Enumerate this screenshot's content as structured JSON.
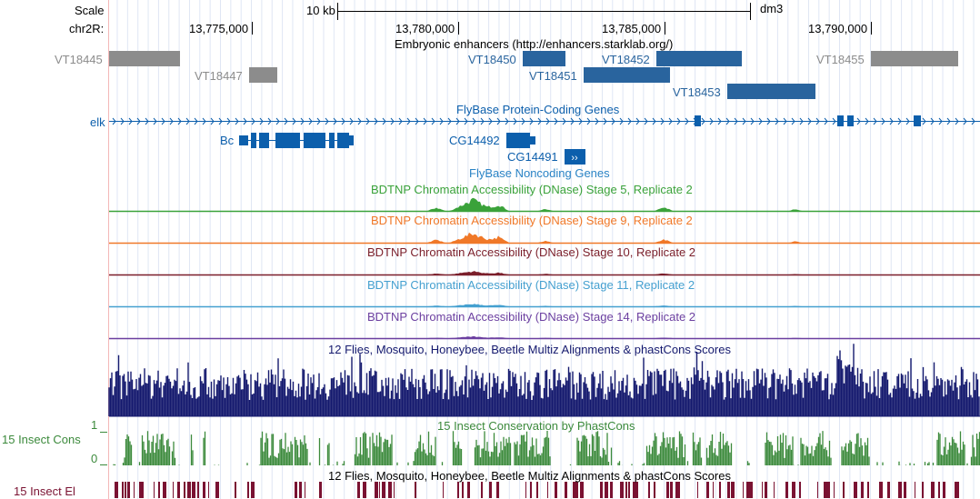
{
  "ruler": {
    "scale_label": "Scale",
    "chrom_label": "chr2R:",
    "scale_bar_label": "10 kb",
    "assembly": "dm3",
    "positions": [
      "13,775,000",
      "13,780,000",
      "13,785,000",
      "13,790,000"
    ]
  },
  "tracks": {
    "enhancers": {
      "title": "Embryonic enhancers (http://enhancers.starklab.org/)",
      "items": [
        {
          "name": "VT18445",
          "color": "#8c8c8c"
        },
        {
          "name": "VT18447",
          "color": "#8c8c8c"
        },
        {
          "name": "VT18450",
          "color": "#29649e"
        },
        {
          "name": "VT18452",
          "color": "#29649e"
        },
        {
          "name": "VT18451",
          "color": "#29649e"
        },
        {
          "name": "VT18453",
          "color": "#29649e"
        },
        {
          "name": "VT18455",
          "color": "#8c8c8c"
        }
      ]
    },
    "protein_genes": {
      "title": "FlyBase Protein-Coding Genes",
      "color": "#0c5fac",
      "genes": [
        "elk",
        "Bc",
        "CG14492",
        "CG14491"
      ]
    },
    "noncoding": {
      "title": "FlyBase Noncoding Genes",
      "color": "#2a83c5"
    },
    "dnase": [
      {
        "title": "BDTNP Chromatin Accessibility (DNase) Stage 5, Replicate 2",
        "color": "#3aa23a"
      },
      {
        "title": "BDTNP Chromatin Accessibility (DNase) Stage 9, Replicate 2",
        "color": "#f07828"
      },
      {
        "title": "BDTNP Chromatin Accessibility (DNase) Stage 10, Replicate 2",
        "color": "#7a1e2a"
      },
      {
        "title": "BDTNP Chromatin Accessibility (DNase) Stage 11, Replicate 2",
        "color": "#45a0d0"
      },
      {
        "title": "BDTNP Chromatin Accessibility (DNase) Stage 14, Replicate 2",
        "color": "#6b3fa0"
      }
    ],
    "multiz": {
      "title": "12 Flies, Mosquito, Honeybee, Beetle Multiz Alignments & phastCons Scores",
      "color": "#14196e"
    },
    "phastcons": {
      "title": "15 Insect Conservation by PhastCons",
      "side_label": "15 Insect Cons",
      "scale_max": "1",
      "scale_min": "0",
      "color": "#3c8a3c"
    },
    "elements": {
      "title": "12 Flies, Mosquito, Honeybee, Beetle Multiz Alignments & phastCons Scores",
      "side_label": "15 Insect El",
      "color": "#7a1232"
    }
  }
}
